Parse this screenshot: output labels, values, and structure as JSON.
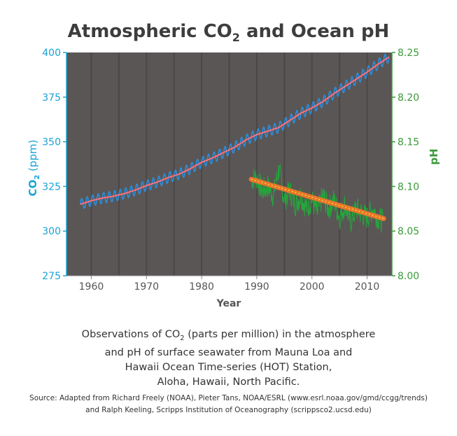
{
  "title": {
    "prefix": "Atmospheric CO",
    "subscript": "2",
    "suffix": " and Ocean pH"
  },
  "caption": {
    "line1_prefix": "Observations of CO",
    "line1_sub": "2",
    "line1_suffix": " (parts per million) in the atmosphere",
    "line2": "and pH of surface seawater from Mauna Loa and",
    "line3": "Hawaii Ocean Time-series (HOT) Station,",
    "line4": "Aloha, Hawaii, North Pacific."
  },
  "source": {
    "line1": "Source: Adapted from Richard Freely (NOAA), Pieter Tans, NOAA/ESRL (www.esrl.noaa.gov/gmd/ccgg/trends)",
    "line2": "and Ralph Keeling, Scripps Institution of Oceanography (scrippsco2.ucsd.edu)"
  },
  "colors": {
    "plot_bg": "#5a5655",
    "co2_axis": "#1aa3d4",
    "ph_axis": "#3a9a3a",
    "co2_data": "#2a8fe0",
    "co2_trend": "#ff6f7a",
    "ph_data": "#22a83a",
    "ph_trend": "#e8762a",
    "ph_trend_core": "#f3d23a",
    "title": "#3d3d3d"
  },
  "chart_data": {
    "type": "line",
    "xlabel": "Year",
    "xlim": [
      1955.5,
      2014.5
    ],
    "xticks": [
      1960,
      1970,
      1980,
      1990,
      2000,
      2010
    ],
    "y_left": {
      "label_prefix": "CO",
      "label_sub": "2",
      "label_suffix": " (ppm)",
      "ylim": [
        275,
        400
      ],
      "ticks": [
        275,
        300,
        325,
        350,
        375,
        400
      ]
    },
    "y_right": {
      "label": "pH",
      "ylim": [
        8.0,
        8.25
      ],
      "ticks": [
        "8.00",
        "8.05",
        "8.10",
        "8.15",
        "8.20",
        "8.25"
      ]
    },
    "series": [
      {
        "axis": "left",
        "points": [
          [
            1958,
            315
          ],
          [
            1960,
            317
          ],
          [
            1962,
            318.5
          ],
          [
            1964,
            319.5
          ],
          [
            1966,
            321
          ],
          [
            1968,
            323
          ],
          [
            1970,
            325.5
          ],
          [
            1972,
            327.5
          ],
          [
            1974,
            330
          ],
          [
            1976,
            332
          ],
          [
            1978,
            335
          ],
          [
            1980,
            338.5
          ],
          [
            1982,
            341
          ],
          [
            1984,
            344
          ],
          [
            1986,
            347
          ],
          [
            1988,
            351
          ],
          [
            1990,
            354
          ],
          [
            1992,
            356
          ],
          [
            1994,
            358
          ],
          [
            1996,
            362
          ],
          [
            1998,
            366
          ],
          [
            2000,
            369
          ],
          [
            2002,
            372.5
          ],
          [
            2004,
            377
          ],
          [
            2006,
            381
          ],
          [
            2008,
            385
          ],
          [
            2010,
            389
          ],
          [
            2012,
            393.5
          ],
          [
            2014,
            397.5
          ]
        ],
        "seasonal_amplitude": 3
      },
      {
        "axis": "right",
        "points": [
          [
            1989,
            8.108
          ],
          [
            1990,
            8.11
          ],
          [
            1991,
            8.095
          ],
          [
            1992,
            8.1
          ],
          [
            1993,
            8.09
          ],
          [
            1994,
            8.12
          ],
          [
            1995,
            8.085
          ],
          [
            1996,
            8.095
          ],
          [
            1997,
            8.08
          ],
          [
            1998,
            8.09
          ],
          [
            1999,
            8.075
          ],
          [
            2000,
            8.085
          ],
          [
            2001,
            8.07
          ],
          [
            2002,
            8.09
          ],
          [
            2003,
            8.075
          ],
          [
            2004,
            8.085
          ],
          [
            2005,
            8.065
          ],
          [
            2006,
            8.08
          ],
          [
            2007,
            8.06
          ],
          [
            2008,
            8.075
          ],
          [
            2009,
            8.07
          ],
          [
            2010,
            8.065
          ],
          [
            2011,
            8.075
          ],
          [
            2012,
            8.065
          ],
          [
            2013,
            8.06
          ]
        ],
        "trend": [
          [
            1989,
            8.108
          ],
          [
            2013,
            8.064
          ]
        ]
      }
    ]
  }
}
